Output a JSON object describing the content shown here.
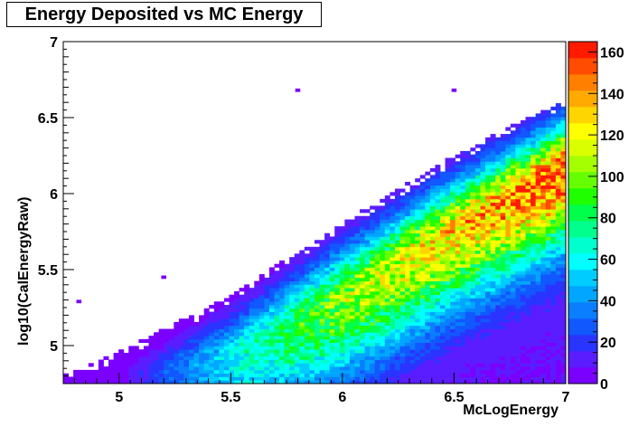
{
  "chart_data": {
    "type": "heatmap",
    "title": "Energy Deposited vs MC Energy",
    "xlabel": "McLogEnergy",
    "ylabel": "log10(CalEnergyRaw)",
    "xlim": [
      4.75,
      7.0
    ],
    "ylim": [
      4.75,
      7.0
    ],
    "x_ticks": [
      "5",
      "5.5",
      "6",
      "6.5",
      "7"
    ],
    "y_ticks": [
      "5",
      "5.5",
      "6",
      "6.5",
      "7"
    ],
    "colorbar": {
      "ticks": [
        "0",
        "20",
        "40",
        "60",
        "80",
        "100",
        "120",
        "140",
        "160"
      ],
      "range": [
        0,
        165
      ],
      "colors": [
        "#7a00ff",
        "#5a1dff",
        "#2a34ff",
        "#1158ff",
        "#0b7eff",
        "#00a6ff",
        "#00ccff",
        "#00ffff",
        "#00ffcf",
        "#00ff8c",
        "#00ff4a",
        "#1eff00",
        "#66ff00",
        "#a6ff00",
        "#d9ff00",
        "#ffff00",
        "#ffd500",
        "#ffaa00",
        "#ff7f00",
        "#ff4c00",
        "#ff1a00"
      ]
    },
    "ridge": {
      "description_points_x": [
        4.8,
        5.0,
        5.5,
        6.0,
        6.5,
        7.0
      ],
      "peak_y": [
        4.76,
        4.76,
        4.9,
        5.28,
        5.74,
        6.15
      ],
      "upper_edge_y": [
        4.8,
        4.93,
        5.3,
        5.78,
        6.22,
        6.6
      ],
      "peak_counts": [
        2,
        5,
        60,
        105,
        130,
        160
      ]
    },
    "outliers": [
      {
        "x": 5.8,
        "y": 6.68
      },
      {
        "x": 6.5,
        "y": 6.68
      },
      {
        "x": 5.2,
        "y": 5.45
      },
      {
        "x": 4.82,
        "y": 5.29
      }
    ]
  }
}
